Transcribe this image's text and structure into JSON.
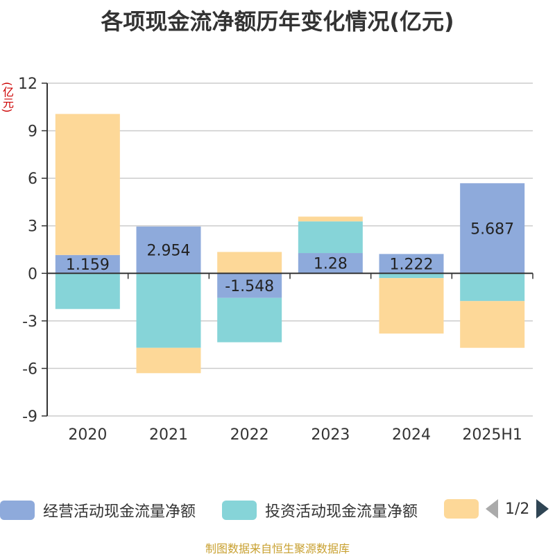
{
  "title": "各项现金流净额历年变化情况(亿元)",
  "unit_label": "(亿元)",
  "source": "制图数据来自恒生聚源数据库",
  "legend": {
    "items": [
      {
        "label": "经营活动现金流量净额",
        "color": "#8eaadb"
      },
      {
        "label": "投资活动现金流量净额",
        "color": "#86d4d8"
      },
      {
        "label": "",
        "color": "#fdd898"
      }
    ],
    "page": "1/2"
  },
  "chart_data": {
    "type": "bar",
    "stacked": true,
    "categories": [
      "2020",
      "2021",
      "2022",
      "2023",
      "2024",
      "2025H1"
    ],
    "series": [
      {
        "name": "经营活动现金流量净额",
        "color": "#8eaadb",
        "values": [
          1.159,
          2.954,
          -1.548,
          1.28,
          1.222,
          5.687
        ],
        "labels": [
          "1.159",
          "2.954",
          "-1.548",
          "1.28",
          "1.222",
          "5.687"
        ]
      },
      {
        "name": "投资活动现金流量净额",
        "color": "#86d4d8",
        "values": [
          -2.25,
          -4.7,
          -2.8,
          2.0,
          -0.3,
          -1.75
        ]
      },
      {
        "name": "",
        "color": "#fdd898",
        "values": [
          8.9,
          -1.6,
          1.35,
          0.3,
          -3.5,
          -2.95
        ]
      }
    ],
    "ylim": [
      -9,
      12
    ],
    "yticks": [
      12,
      9,
      6,
      3,
      0,
      -3,
      -6,
      -9
    ],
    "grid": true,
    "legend_position": "bottom"
  }
}
